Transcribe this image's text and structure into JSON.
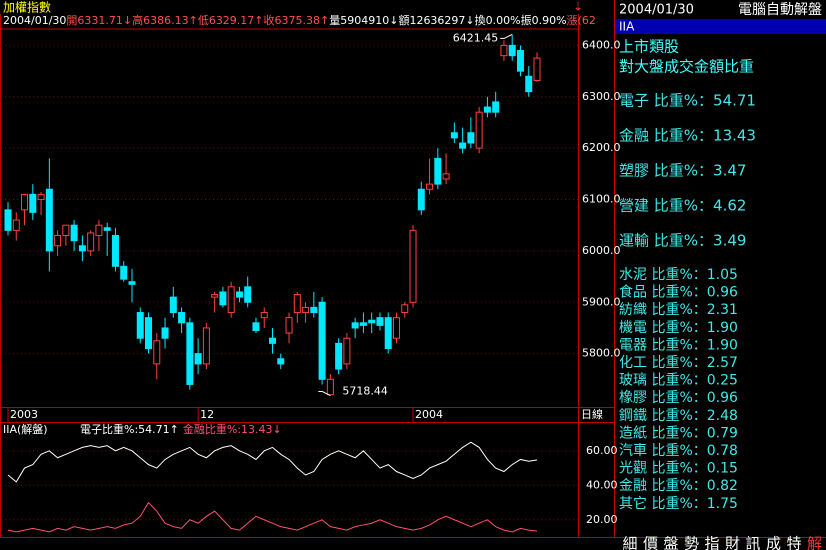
{
  "info_bar": {
    "items": [
      {
        "text": "2004/01/30",
        "color": "#ffffff"
      },
      {
        "text": "開6331.71↓高6386.13↑低6329.17↑收6375.38↑",
        "color": "#ff5050"
      },
      {
        "text": "量5904910↓額12636297↓換0.00%振0.90%",
        "color": "#ffffff"
      },
      {
        "text": "漲(62",
        "color": "#ff5050"
      }
    ]
  },
  "side_panel": {
    "date": "2004/01/30",
    "title": "電腦自動解盤",
    "tab": "IIA",
    "heading1": "上市類股",
    "heading2": "對大盤成交金額比重",
    "items": [
      "電子 比重%：54.71",
      "金融 比重%：13.43",
      "塑膠 比重%：3.47",
      "營建 比重%：4.62",
      "運輸 比重%：3.49",
      "水泥 比重%：1.05",
      "食品 比重%：0.96",
      "紡織 比重%：2.31",
      "機電 比重%：1.90",
      "電器 比重%：1.90",
      "化工 比重%：2.57",
      "玻璃 比重%：0.25",
      "橡膠 比重%：0.96",
      "鋼鐵 比重%：2.48",
      "造紙 比重%：0.79",
      "汽車 比重%：0.78",
      "光觀 比重%：0.15",
      "金融 比重%：0.82",
      "其它 比重%：1.75"
    ]
  },
  "toolbar": {
    "buttons": [
      "細",
      "價",
      "盤",
      "勢",
      "指",
      "財",
      "訊",
      "成",
      "特",
      "解"
    ]
  },
  "period_label": "日線",
  "chart_data": [
    {
      "type": "candlestick",
      "title": "加權指數",
      "up_color": "#ff4040",
      "down_color": "#00e8ff",
      "categories": [
        "2003",
        null,
        null,
        null,
        null,
        null,
        null,
        null,
        null,
        null,
        null,
        null,
        null,
        null,
        null,
        null,
        null,
        null,
        null,
        null,
        null,
        null,
        null,
        "12",
        null,
        null,
        null,
        null,
        null,
        null,
        null,
        null,
        null,
        null,
        null,
        null,
        null,
        null,
        null,
        null,
        null,
        null,
        null,
        null,
        null,
        null,
        null,
        null,
        null,
        "2004",
        null,
        null,
        null,
        null,
        null,
        null,
        null,
        null,
        null,
        null,
        null,
        null,
        null,
        null,
        null
      ],
      "series": [
        {
          "name": "open",
          "values": [
            6080,
            6040,
            6080,
            6110,
            6100,
            6120,
            6010,
            6030,
            6050,
            6010,
            6000,
            6030,
            6045,
            6030,
            5970,
            5940,
            5880,
            5870,
            5780,
            5850,
            5910,
            5880,
            5860,
            5800,
            5780,
            5910,
            5920,
            5880,
            5920,
            5930,
            5860,
            5870,
            5830,
            5790,
            5840,
            5880,
            5880,
            5890,
            5900,
            5720,
            5820,
            5780,
            5860,
            5860,
            5865,
            5870,
            5870,
            5830,
            5880,
            5900,
            6120,
            6120,
            6180,
            6140,
            6230,
            6210,
            6230,
            6200,
            6280,
            6290,
            6380,
            6400,
            6390,
            6340,
            6331.71
          ]
        },
        {
          "name": "high",
          "values": [
            6095,
            6075,
            6110,
            6130,
            6115,
            6180,
            6040,
            6050,
            6060,
            6030,
            6040,
            6060,
            6055,
            6045,
            5980,
            5965,
            5890,
            5880,
            5840,
            5870,
            5930,
            5890,
            5870,
            5830,
            5860,
            5920,
            5930,
            5940,
            5930,
            5950,
            5870,
            5890,
            5850,
            5800,
            5880,
            5920,
            5900,
            5920,
            5910,
            5760,
            5830,
            5840,
            5870,
            5880,
            5880,
            5880,
            5880,
            5880,
            5900,
            6050,
            6135,
            6180,
            6200,
            6190,
            6250,
            6240,
            6260,
            6280,
            6300,
            6310,
            6410,
            6421.45,
            6400,
            6360,
            6386.13
          ]
        },
        {
          "name": "low",
          "values": [
            6030,
            6020,
            6050,
            6060,
            6070,
            5960,
            5990,
            6010,
            6000,
            5980,
            5990,
            6000,
            5990,
            5960,
            5940,
            5900,
            5820,
            5800,
            5750,
            5810,
            5870,
            5840,
            5730,
            5760,
            5770,
            5880,
            5890,
            5870,
            5900,
            5890,
            5840,
            5850,
            5800,
            5770,
            5820,
            5860,
            5860,
            5870,
            5740,
            5718.44,
            5760,
            5770,
            5830,
            5840,
            5840,
            5845,
            5800,
            5820,
            5870,
            5890,
            6070,
            6110,
            6120,
            6130,
            6210,
            6190,
            6200,
            6190,
            6260,
            6260,
            6370,
            6370,
            6340,
            6300,
            6329.17
          ]
        },
        {
          "name": "close",
          "values": [
            6040,
            6060,
            6110,
            6075,
            6110,
            6000,
            6030,
            6050,
            6020,
            6000,
            6035,
            6050,
            6040,
            5970,
            5945,
            5935,
            5830,
            5810,
            5825,
            5830,
            5880,
            5860,
            5740,
            5780,
            5850,
            5915,
            5895,
            5930,
            5910,
            5900,
            5845,
            5880,
            5820,
            5780,
            5870,
            5915,
            5890,
            5880,
            5750,
            5750,
            5770,
            5830,
            5850,
            5855,
            5860,
            5855,
            5810,
            5870,
            5895,
            6040,
            6080,
            6130,
            6130,
            6150,
            6220,
            6200,
            6210,
            6270,
            6270,
            6270,
            6400,
            6380,
            6350,
            6310,
            6375.38
          ]
        }
      ],
      "annotations": [
        {
          "value": 6421.45,
          "label": "6421.45",
          "of": "high"
        },
        {
          "value": 5718.44,
          "label": "5718.44",
          "of": "low"
        }
      ],
      "ylim": [
        5700,
        6430
      ],
      "yticks": [
        {
          "value": 5800,
          "label": "5800.0"
        },
        {
          "value": 5900,
          "label": "5900.0"
        },
        {
          "value": 6000,
          "label": "6000.0"
        },
        {
          "value": 6100,
          "label": "6100.0"
        },
        {
          "value": 6200,
          "label": "6200.0"
        },
        {
          "value": 6300,
          "label": "6300.0"
        },
        {
          "value": 6400,
          "label": "6400.0"
        }
      ],
      "grid": true
    },
    {
      "type": "line",
      "title": "IIA(解盤)",
      "series": [
        {
          "name": "電子比重%:54.71↑",
          "color": "#ffffff",
          "values": [
            46,
            42,
            50,
            52,
            58,
            60,
            56,
            58,
            60,
            62,
            63,
            62,
            63,
            60,
            62,
            60,
            56,
            52,
            50,
            55,
            58,
            60,
            62,
            58,
            56,
            60,
            62,
            63,
            60,
            58,
            55,
            60,
            62,
            58,
            55,
            50,
            46,
            48,
            55,
            58,
            60,
            58,
            56,
            60,
            55,
            50,
            52,
            48,
            46,
            44,
            46,
            50,
            52,
            54,
            58,
            62,
            65,
            62,
            55,
            50,
            48,
            52,
            55,
            54,
            54.71
          ]
        },
        {
          "name": "金融比重%:13.43↓",
          "color": "#ff5070",
          "values": [
            14,
            13,
            14,
            15,
            14,
            13,
            15,
            14,
            16,
            15,
            14,
            15,
            16,
            15,
            17,
            18,
            22,
            30,
            25,
            18,
            16,
            15,
            20,
            18,
            22,
            25,
            20,
            15,
            14,
            18,
            22,
            20,
            18,
            16,
            15,
            14,
            16,
            18,
            20,
            16,
            15,
            14,
            16,
            17,
            18,
            20,
            18,
            16,
            15,
            14,
            15,
            17,
            20,
            22,
            20,
            18,
            16,
            18,
            20,
            16,
            14,
            13,
            15,
            14,
            13.43
          ]
        }
      ],
      "ylim": [
        10,
        75
      ],
      "yticks": [
        {
          "value": 20,
          "label": "20.00"
        },
        {
          "value": 40,
          "label": "40.00"
        },
        {
          "value": 60,
          "label": "60.00"
        }
      ],
      "grid": true
    }
  ]
}
